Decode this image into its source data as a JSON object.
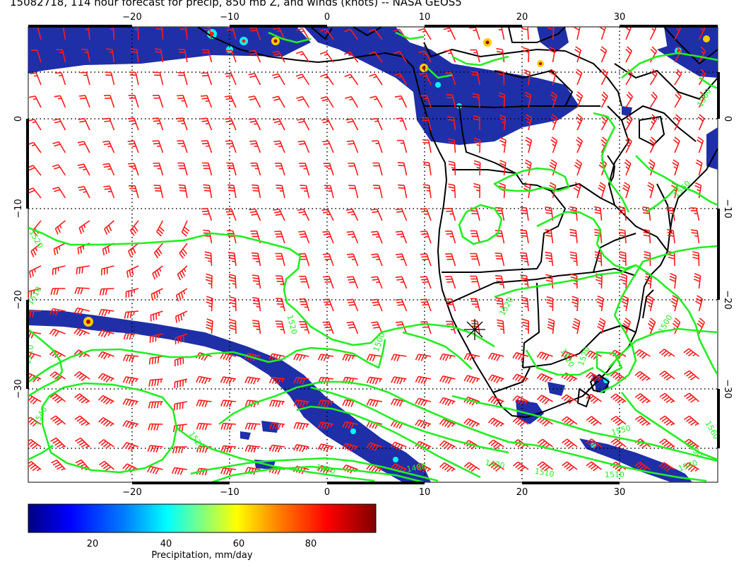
{
  "title": "15082718, 114 hour forecast for precip, 850 mb Z, and winds (knots) -- NASA GEOS5",
  "map": {
    "lon_ticks": [
      "−20",
      "−10",
      "0",
      "10",
      "20",
      "30"
    ],
    "lat_ticks": [
      "0",
      "−10",
      "−20",
      "−30"
    ],
    "contour_labels": [
      "1520",
      "1520",
      "1510",
      "1520",
      "1500",
      "1520",
      "1520",
      "1520",
      "1500",
      "1560",
      "1560",
      "1510",
      "1540",
      "1460",
      "1480",
      "1420",
      "1510",
      "1550",
      "1560",
      "1540",
      "1510",
      "1530"
    ],
    "contour_color": "#22ee22",
    "barb_color": "#ff1a1a",
    "precip_color": "#1f2fa8"
  },
  "colorbar": {
    "ticks": [
      "20",
      "40",
      "60",
      "80"
    ],
    "label": "Precipitation, mm/day",
    "colors": [
      "#000080",
      "#0000ff",
      "#0080ff",
      "#00ffff",
      "#80ff80",
      "#ffff00",
      "#ff8000",
      "#ff0000",
      "#800000"
    ]
  }
}
